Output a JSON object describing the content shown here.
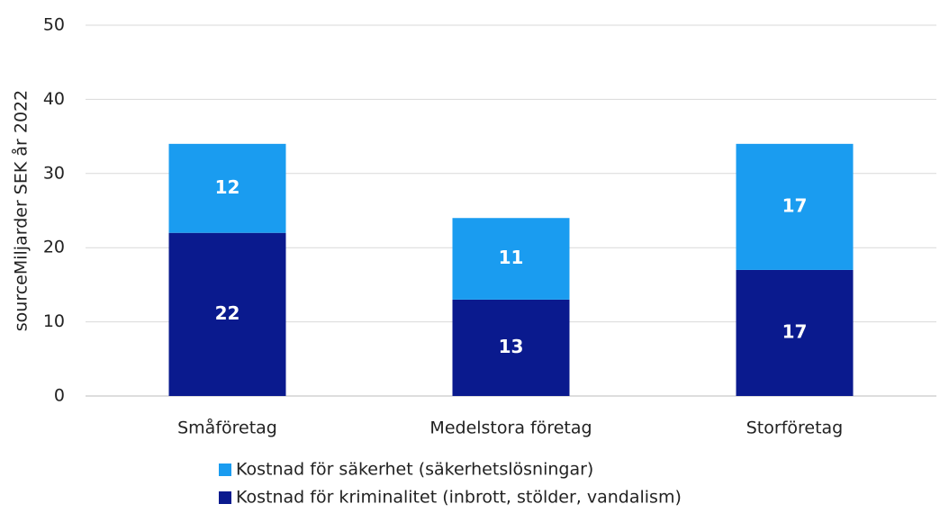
{
  "chart_data": {
    "type": "stacked_bar",
    "y_label": "sourceMiljarder SEK år 2022",
    "categories": [
      "Småföretag",
      "Medelstora företag",
      "Storföretag"
    ],
    "series": [
      {
        "name": "Kostnad för kriminalitet (inbrott, stölder, vandalism)",
        "color": "#0a1a8e",
        "values": [
          22,
          13,
          17
        ]
      },
      {
        "name": "Kostnad för säkerhet (säkerhetslösningar)",
        "color": "#1a9cf0",
        "values": [
          12,
          11,
          17
        ]
      }
    ],
    "ylim": [
      0,
      50
    ],
    "yticks": [
      0,
      10,
      20,
      30,
      40,
      50
    ],
    "grid": true,
    "legend": "bottom"
  }
}
